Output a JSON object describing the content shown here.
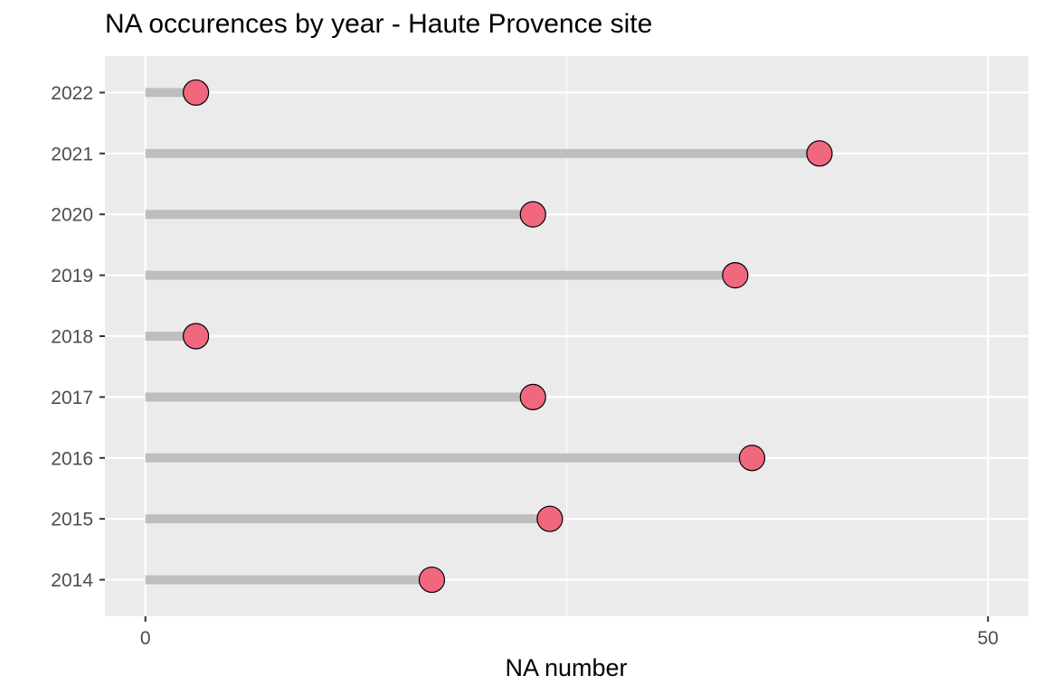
{
  "chart_data": {
    "type": "lollipop",
    "title": "NA occurences by year - Haute Provence site",
    "xlabel": "NA number",
    "ylabel": "",
    "categories": [
      "2014",
      "2015",
      "2016",
      "2017",
      "2018",
      "2019",
      "2020",
      "2021",
      "2022"
    ],
    "values": [
      17,
      24,
      36,
      23,
      3,
      35,
      23,
      40,
      3
    ],
    "xlim": [
      -2.4,
      52.4
    ],
    "x_ticks": [
      0,
      50
    ],
    "x_tick_labels": [
      "0",
      "50"
    ],
    "grid": true,
    "legend": "none",
    "colors": {
      "panel_background": "#ebebeb",
      "grid": "#ffffff",
      "stem": "#bebebe",
      "point_fill": "#f0677e",
      "point_outline": "#000000",
      "axis_text": "#4d4d4d"
    }
  }
}
